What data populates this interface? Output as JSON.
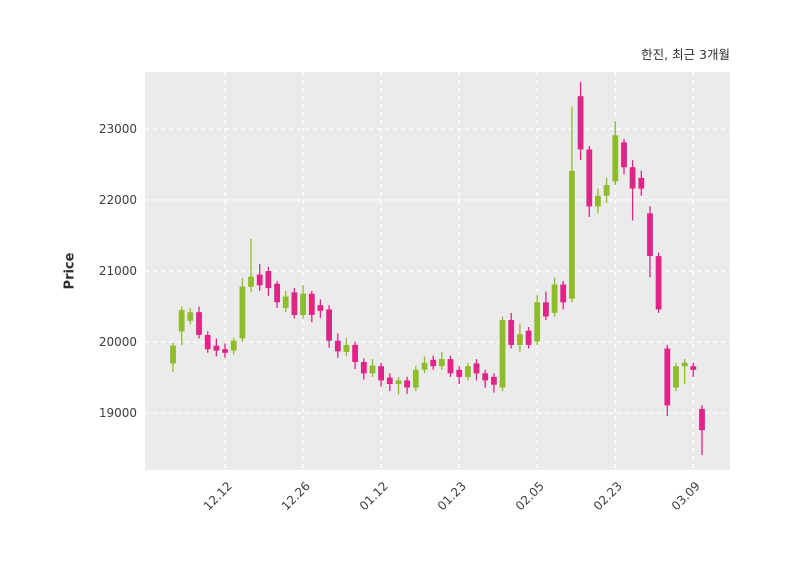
{
  "colors": {
    "up": "#8fbc2b",
    "down": "#e02488",
    "plot_background": "#ebebeb",
    "grid": "#ffffff",
    "text": "#3d3d3d"
  },
  "chart_data": {
    "type": "candlestick",
    "title": "한진, 최근 3개월",
    "xlabel": "",
    "ylabel": "Price",
    "ylim": [
      18200,
      23800
    ],
    "yticks": [
      19000,
      20000,
      21000,
      22000,
      23000
    ],
    "xtick_labels": [
      "12.12",
      "12.26",
      "01.12",
      "01.23",
      "02.05",
      "02.23",
      "03.09"
    ],
    "xtick_indices": [
      6,
      15,
      24,
      33,
      42,
      51,
      60
    ],
    "grid": "white-dashed",
    "legend": "none",
    "candle_format": [
      "open",
      "high",
      "low",
      "close"
    ],
    "candles": [
      [
        19700,
        19990,
        19580,
        19950
      ],
      [
        20150,
        20500,
        19960,
        20450
      ],
      [
        20300,
        20480,
        20250,
        20420
      ],
      [
        20420,
        20500,
        20050,
        20100
      ],
      [
        20100,
        20150,
        19850,
        19900
      ],
      [
        19950,
        20050,
        19800,
        19880
      ],
      [
        19900,
        19980,
        19780,
        19850
      ],
      [
        19880,
        20060,
        19830,
        20020
      ],
      [
        20050,
        20900,
        20000,
        20780
      ],
      [
        20780,
        21450,
        20700,
        20920
      ],
      [
        20950,
        21100,
        20720,
        20800
      ],
      [
        21000,
        21060,
        20650,
        20760
      ],
      [
        20820,
        20860,
        20480,
        20560
      ],
      [
        20480,
        20720,
        20420,
        20640
      ],
      [
        20700,
        20760,
        20330,
        20380
      ],
      [
        20380,
        20800,
        20330,
        20680
      ],
      [
        20680,
        20720,
        20280,
        20380
      ],
      [
        20520,
        20600,
        20340,
        20440
      ],
      [
        20460,
        20520,
        19920,
        20020
      ],
      [
        20020,
        20120,
        19780,
        19870
      ],
      [
        19860,
        20060,
        19800,
        19960
      ],
      [
        19960,
        20010,
        19620,
        19720
      ],
      [
        19720,
        19770,
        19470,
        19560
      ],
      [
        19560,
        19760,
        19510,
        19670
      ],
      [
        19660,
        19710,
        19370,
        19460
      ],
      [
        19500,
        19560,
        19310,
        19410
      ],
      [
        19410,
        19510,
        19260,
        19460
      ],
      [
        19460,
        19510,
        19270,
        19360
      ],
      [
        19360,
        19660,
        19310,
        19610
      ],
      [
        19610,
        19800,
        19560,
        19710
      ],
      [
        19750,
        19810,
        19610,
        19660
      ],
      [
        19660,
        19860,
        19610,
        19760
      ],
      [
        19760,
        19810,
        19510,
        19560
      ],
      [
        19610,
        19660,
        19410,
        19510
      ],
      [
        19510,
        19710,
        19460,
        19660
      ],
      [
        19700,
        19760,
        19460,
        19560
      ],
      [
        19560,
        19610,
        19360,
        19460
      ],
      [
        19510,
        19560,
        19290,
        19400
      ],
      [
        19360,
        20360,
        19310,
        20310
      ],
      [
        20310,
        20410,
        19910,
        19960
      ],
      [
        19960,
        20260,
        19860,
        20110
      ],
      [
        20160,
        20210,
        19910,
        19960
      ],
      [
        20010,
        20660,
        19960,
        20560
      ],
      [
        20560,
        20710,
        20310,
        20360
      ],
      [
        20410,
        20910,
        20360,
        20810
      ],
      [
        20810,
        20860,
        20460,
        20560
      ],
      [
        20610,
        23310,
        20560,
        22410
      ],
      [
        23460,
        23660,
        22560,
        22710
      ],
      [
        22710,
        22760,
        21760,
        21910
      ],
      [
        21910,
        22160,
        21810,
        22060
      ],
      [
        22060,
        22310,
        21960,
        22210
      ],
      [
        22260,
        23110,
        22210,
        22910
      ],
      [
        22810,
        22860,
        22360,
        22460
      ],
      [
        22460,
        22560,
        21710,
        22160
      ],
      [
        22310,
        22410,
        22060,
        22160
      ],
      [
        21810,
        21910,
        20910,
        21210
      ],
      [
        21210,
        21260,
        20410,
        20460
      ],
      [
        19910,
        19960,
        18960,
        19110
      ],
      [
        19360,
        19710,
        19310,
        19660
      ],
      [
        19660,
        19760,
        19410,
        19710
      ],
      [
        19660,
        19710,
        19510,
        19610
      ],
      [
        19060,
        19110,
        18410,
        18760
      ]
    ]
  }
}
